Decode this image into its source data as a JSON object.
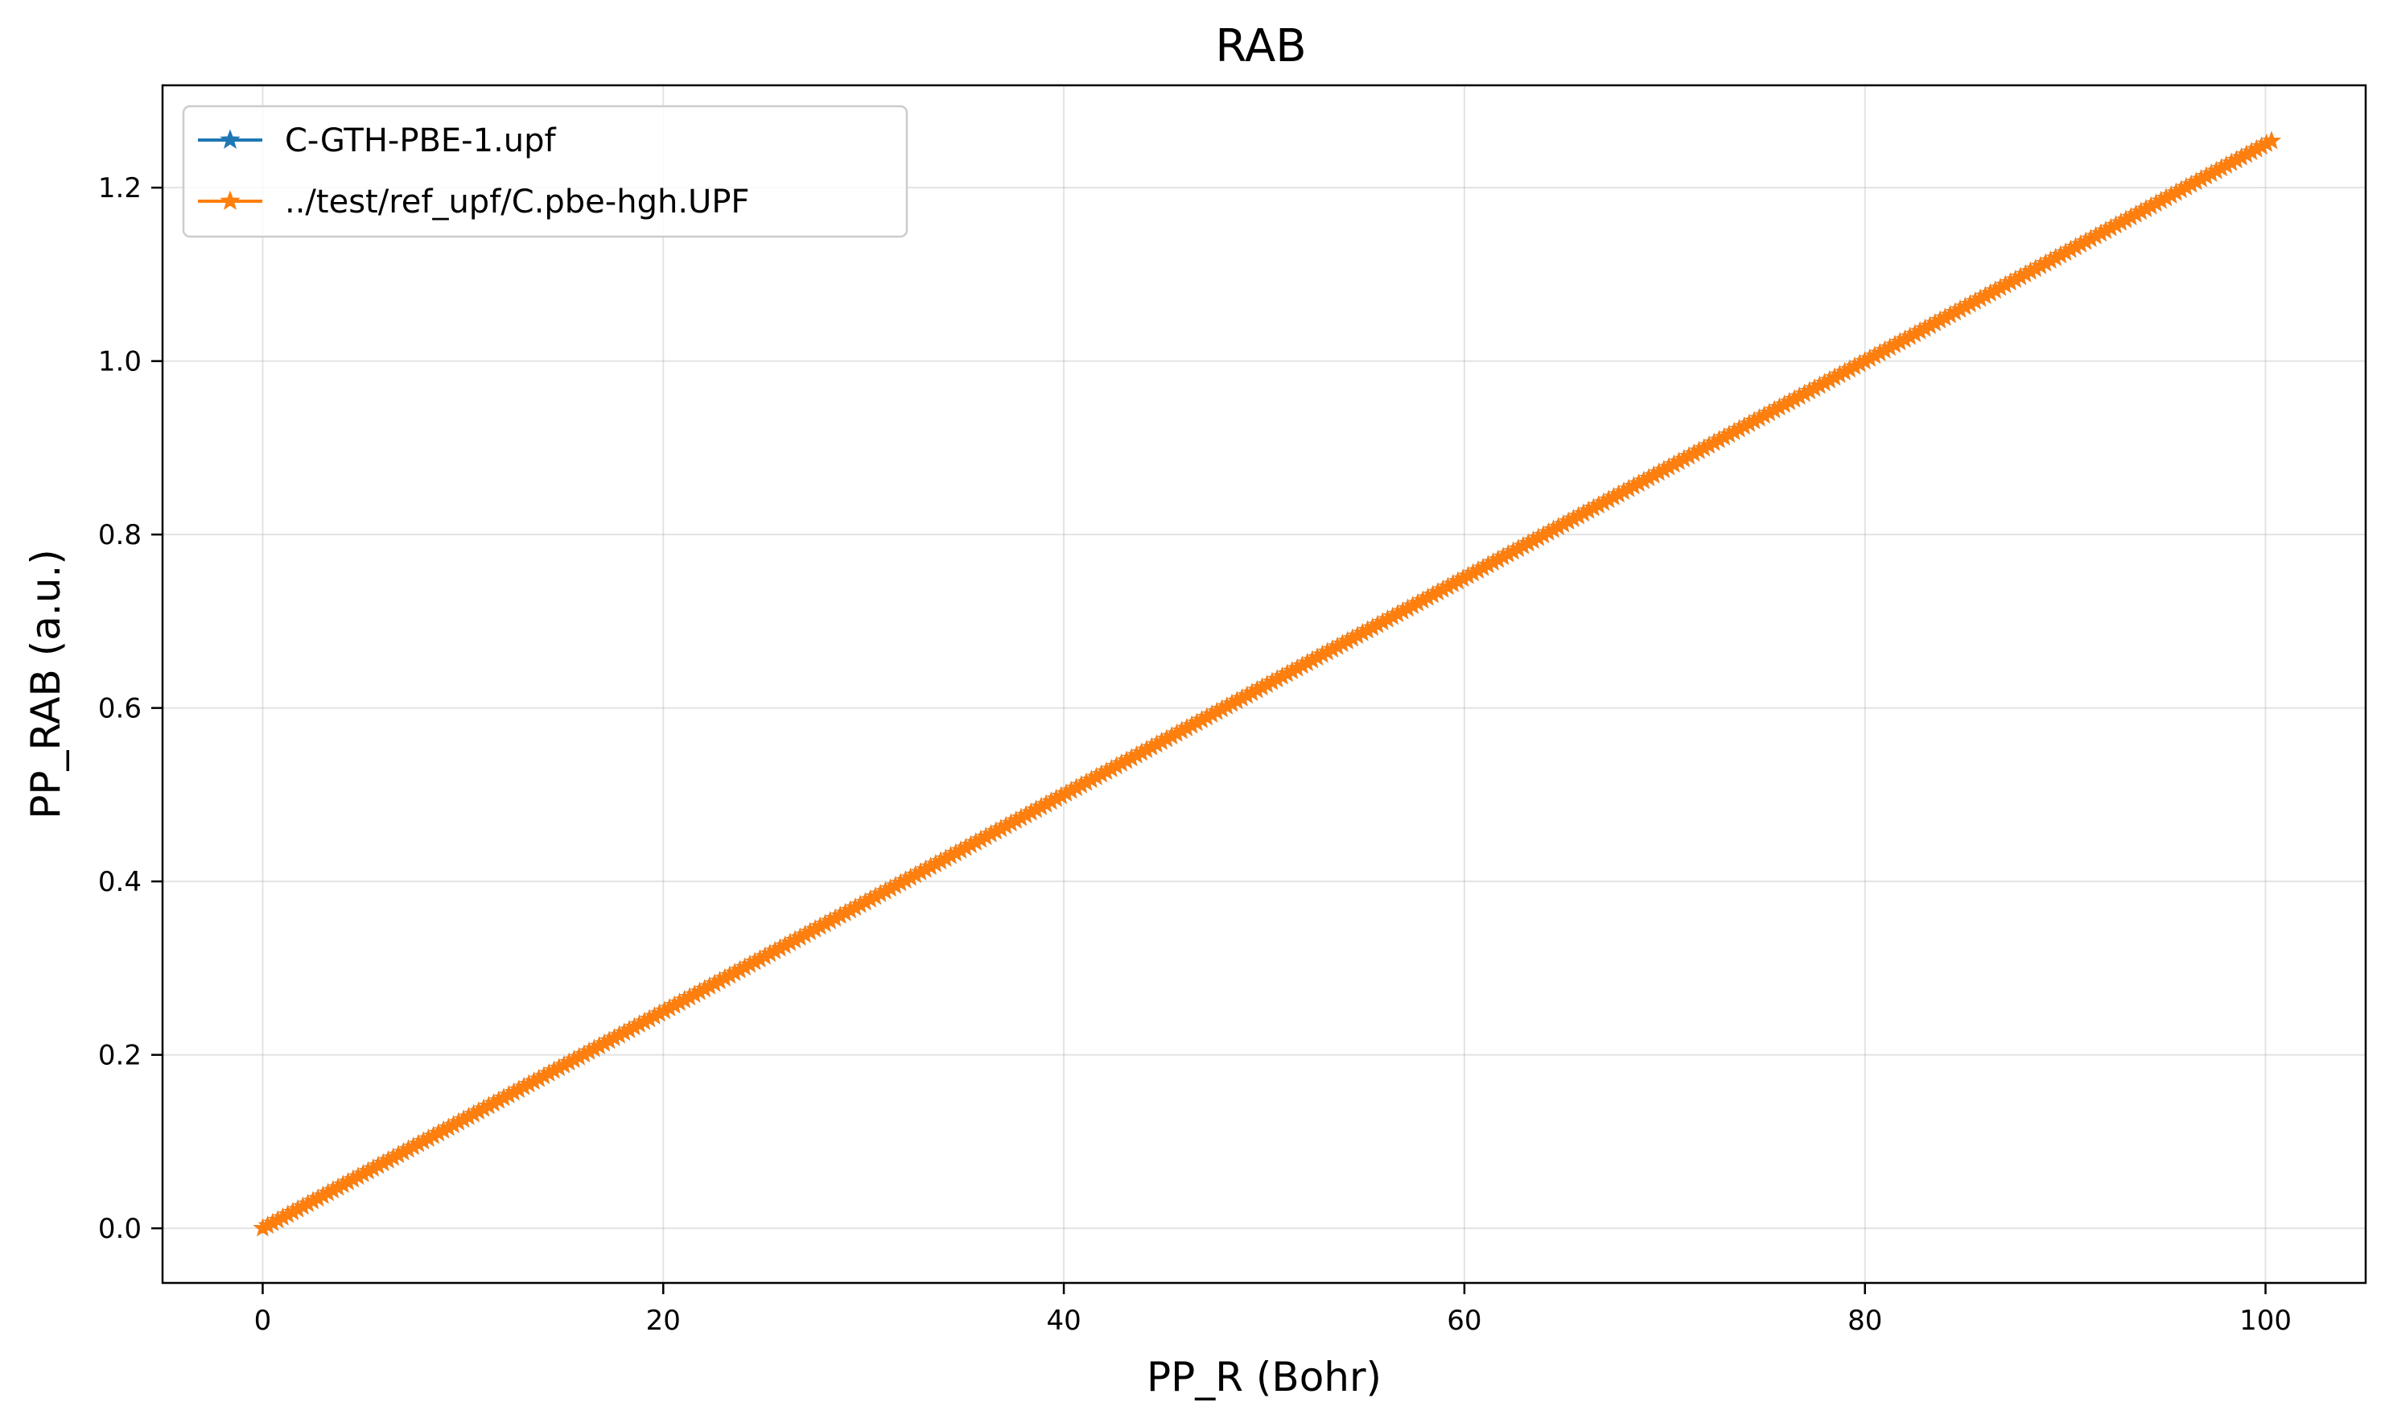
{
  "chart_data": {
    "type": "line",
    "title": "RAB",
    "xlabel": "PP_R (Bohr)",
    "ylabel": "PP_RAB (a.u.)",
    "xlim": [
      -5,
      105
    ],
    "ylim": [
      -0.063,
      1.318
    ],
    "xticks": [
      0,
      20,
      40,
      60,
      80,
      100
    ],
    "xtick_labels": [
      "0",
      "20",
      "40",
      "60",
      "80",
      "100"
    ],
    "yticks": [
      0.0,
      0.2,
      0.4,
      0.6,
      0.8,
      1.0,
      1.2
    ],
    "ytick_labels": [
      "0.0",
      "0.2",
      "0.4",
      "0.6",
      "0.8",
      "1.0",
      "1.2"
    ],
    "grid": true,
    "legend_position": "top-left",
    "x_range": [
      0,
      100.3
    ],
    "slope": 0.0125,
    "series": [
      {
        "name": "C-GTH-PBE-1.upf",
        "color": "#1f77b4",
        "marker": "star"
      },
      {
        "name": "../test/ref_upf/C.pbe-hgh.UPF",
        "color": "#ff7f0e",
        "marker": "star"
      }
    ]
  }
}
